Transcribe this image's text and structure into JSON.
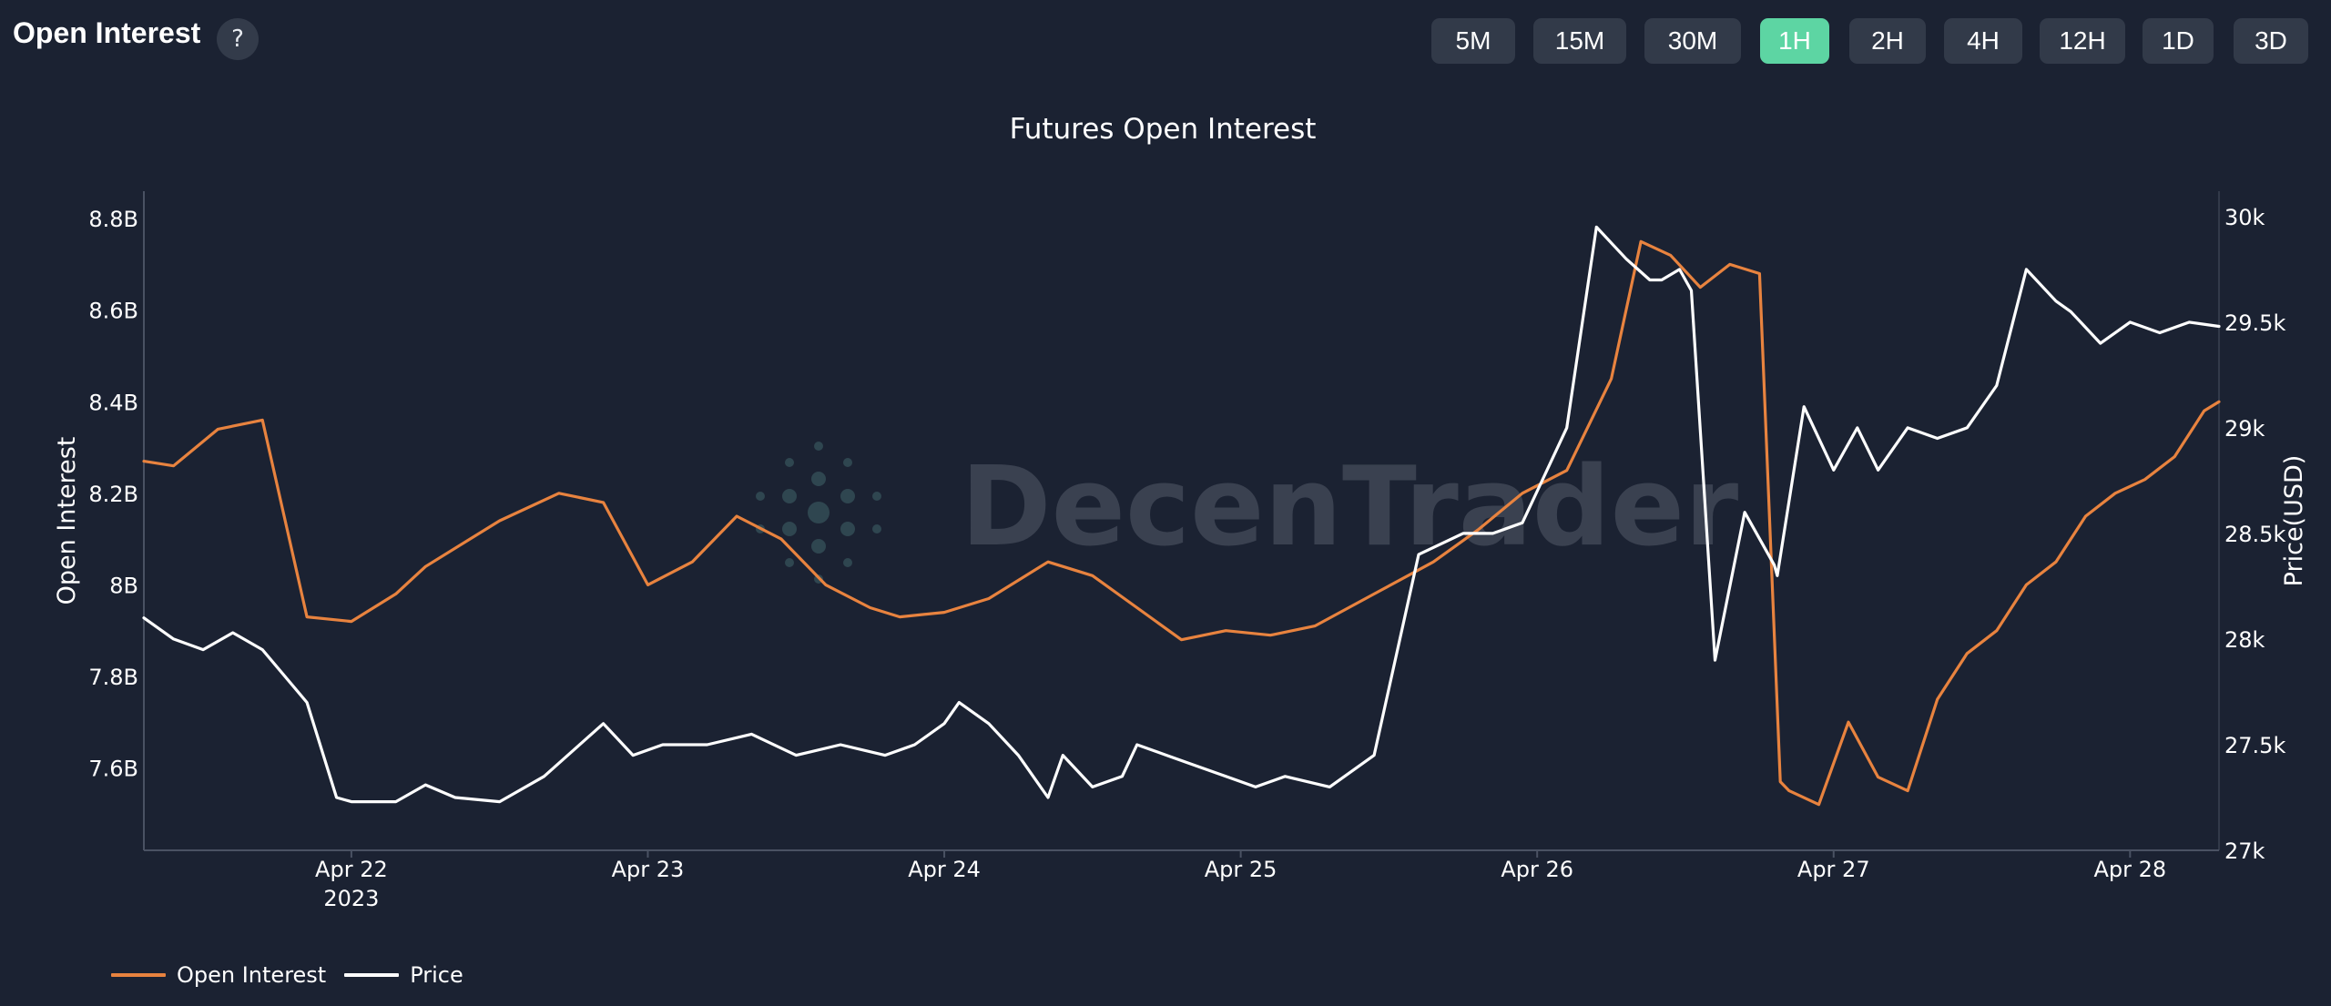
{
  "header": {
    "title": "Open Interest",
    "help_label": "?"
  },
  "timeframes": [
    {
      "label": "5M",
      "active": false
    },
    {
      "label": "15M",
      "active": false
    },
    {
      "label": "30M",
      "active": false
    },
    {
      "label": "1H",
      "active": true
    },
    {
      "label": "2H",
      "active": false
    },
    {
      "label": "4H",
      "active": false
    },
    {
      "label": "12H",
      "active": false
    },
    {
      "label": "1D",
      "active": false
    },
    {
      "label": "3D",
      "active": false
    }
  ],
  "watermark": "DecenTrader",
  "colors": {
    "background": "#1b2232",
    "open_interest": "#e8833f",
    "price": "#ffffff",
    "active_button": "#5dd5a3",
    "button": "#323a49"
  },
  "chart_data": {
    "type": "line",
    "title": "Futures Open Interest",
    "ylabel": "Open Interest",
    "y2label": "Price(USD)",
    "x_ticks": [
      "Apr 22",
      "Apr 23",
      "Apr 24",
      "Apr 25",
      "Apr 26",
      "Apr 27",
      "Apr 28"
    ],
    "x_tick_sublabel": "2023",
    "x_range_days": [
      21.3,
      28.3
    ],
    "ylim": [
      7.42,
      8.86
    ],
    "y_ticks": [
      {
        "value": 7.6,
        "label": "7.6B"
      },
      {
        "value": 7.8,
        "label": "7.8B"
      },
      {
        "value": 8.0,
        "label": "8B"
      },
      {
        "value": 8.2,
        "label": "8.2B"
      },
      {
        "value": 8.4,
        "label": "8.4B"
      },
      {
        "value": 8.6,
        "label": "8.6B"
      },
      {
        "value": 8.8,
        "label": "8.8B"
      }
    ],
    "y2lim": [
      27000,
      30120
    ],
    "y2_ticks": [
      {
        "value": 27000,
        "label": "27k"
      },
      {
        "value": 27500,
        "label": "27.5k"
      },
      {
        "value": 28000,
        "label": "28k"
      },
      {
        "value": 28500,
        "label": "28.5k"
      },
      {
        "value": 29000,
        "label": "29k"
      },
      {
        "value": 29500,
        "label": "29.5k"
      },
      {
        "value": 30000,
        "label": "30k"
      }
    ],
    "legend_position": "bottom-left",
    "series": [
      {
        "name": "Open Interest",
        "axis": "left",
        "x": [
          21.3,
          21.4,
          21.55,
          21.7,
          21.85,
          22.0,
          22.15,
          22.25,
          22.5,
          22.7,
          22.85,
          23.0,
          23.15,
          23.3,
          23.45,
          23.6,
          23.75,
          23.85,
          24.0,
          24.15,
          24.35,
          24.5,
          24.65,
          24.8,
          24.95,
          25.1,
          25.25,
          25.45,
          25.65,
          25.8,
          25.95,
          26.1,
          26.25,
          26.35,
          26.45,
          26.55,
          26.65,
          26.75,
          26.82,
          26.85,
          26.95,
          27.05,
          27.15,
          27.25,
          27.35,
          27.45,
          27.55,
          27.65,
          27.75,
          27.85,
          27.95,
          28.05,
          28.15,
          28.25,
          28.3
        ],
        "y": [
          8.27,
          8.26,
          8.34,
          8.36,
          7.93,
          7.92,
          7.98,
          8.04,
          8.14,
          8.2,
          8.18,
          8.0,
          8.05,
          8.15,
          8.1,
          8.0,
          7.95,
          7.93,
          7.94,
          7.97,
          8.05,
          8.02,
          7.95,
          7.88,
          7.9,
          7.89,
          7.91,
          7.98,
          8.05,
          8.12,
          8.2,
          8.25,
          8.45,
          8.75,
          8.72,
          8.65,
          8.7,
          8.68,
          7.57,
          7.55,
          7.52,
          7.7,
          7.58,
          7.55,
          7.75,
          7.85,
          7.9,
          8.0,
          8.05,
          8.15,
          8.2,
          8.23,
          8.28,
          8.38,
          8.4
        ]
      },
      {
        "name": "Price",
        "axis": "right",
        "x": [
          21.3,
          21.4,
          21.5,
          21.6,
          21.7,
          21.85,
          21.95,
          22.0,
          22.15,
          22.25,
          22.35,
          22.5,
          22.65,
          22.85,
          22.95,
          23.05,
          23.2,
          23.35,
          23.5,
          23.65,
          23.8,
          23.9,
          24.0,
          24.05,
          24.15,
          24.25,
          24.35,
          24.4,
          24.5,
          24.6,
          24.65,
          24.75,
          24.85,
          24.95,
          25.05,
          25.15,
          25.3,
          25.45,
          25.6,
          25.75,
          25.85,
          25.95,
          26.0,
          26.1,
          26.2,
          26.3,
          26.38,
          26.42,
          26.48,
          26.52,
          26.6,
          26.7,
          26.8,
          26.81,
          26.9,
          27.0,
          27.08,
          27.15,
          27.25,
          27.35,
          27.45,
          27.55,
          27.65,
          27.75,
          27.8,
          27.9,
          28.0,
          28.1,
          28.2,
          28.3
        ],
        "y": [
          28.1,
          28.0,
          27.95,
          28.03,
          27.95,
          27.7,
          27.25,
          27.23,
          27.23,
          27.31,
          27.25,
          27.23,
          27.35,
          27.6,
          27.45,
          27.5,
          27.5,
          27.55,
          27.45,
          27.5,
          27.45,
          27.5,
          27.6,
          27.7,
          27.6,
          27.45,
          27.25,
          27.45,
          27.3,
          27.35,
          27.5,
          27.45,
          27.4,
          27.35,
          27.3,
          27.35,
          27.3,
          27.45,
          28.4,
          28.5,
          28.5,
          28.55,
          28.7,
          29.0,
          29.95,
          29.8,
          29.7,
          29.7,
          29.75,
          29.65,
          27.9,
          28.6,
          28.35,
          28.3,
          29.1,
          28.8,
          29.0,
          28.8,
          29.0,
          28.95,
          29.0,
          29.2,
          29.75,
          29.6,
          29.55,
          29.4,
          29.5,
          29.45,
          29.5,
          29.48
        ]
      }
    ]
  }
}
